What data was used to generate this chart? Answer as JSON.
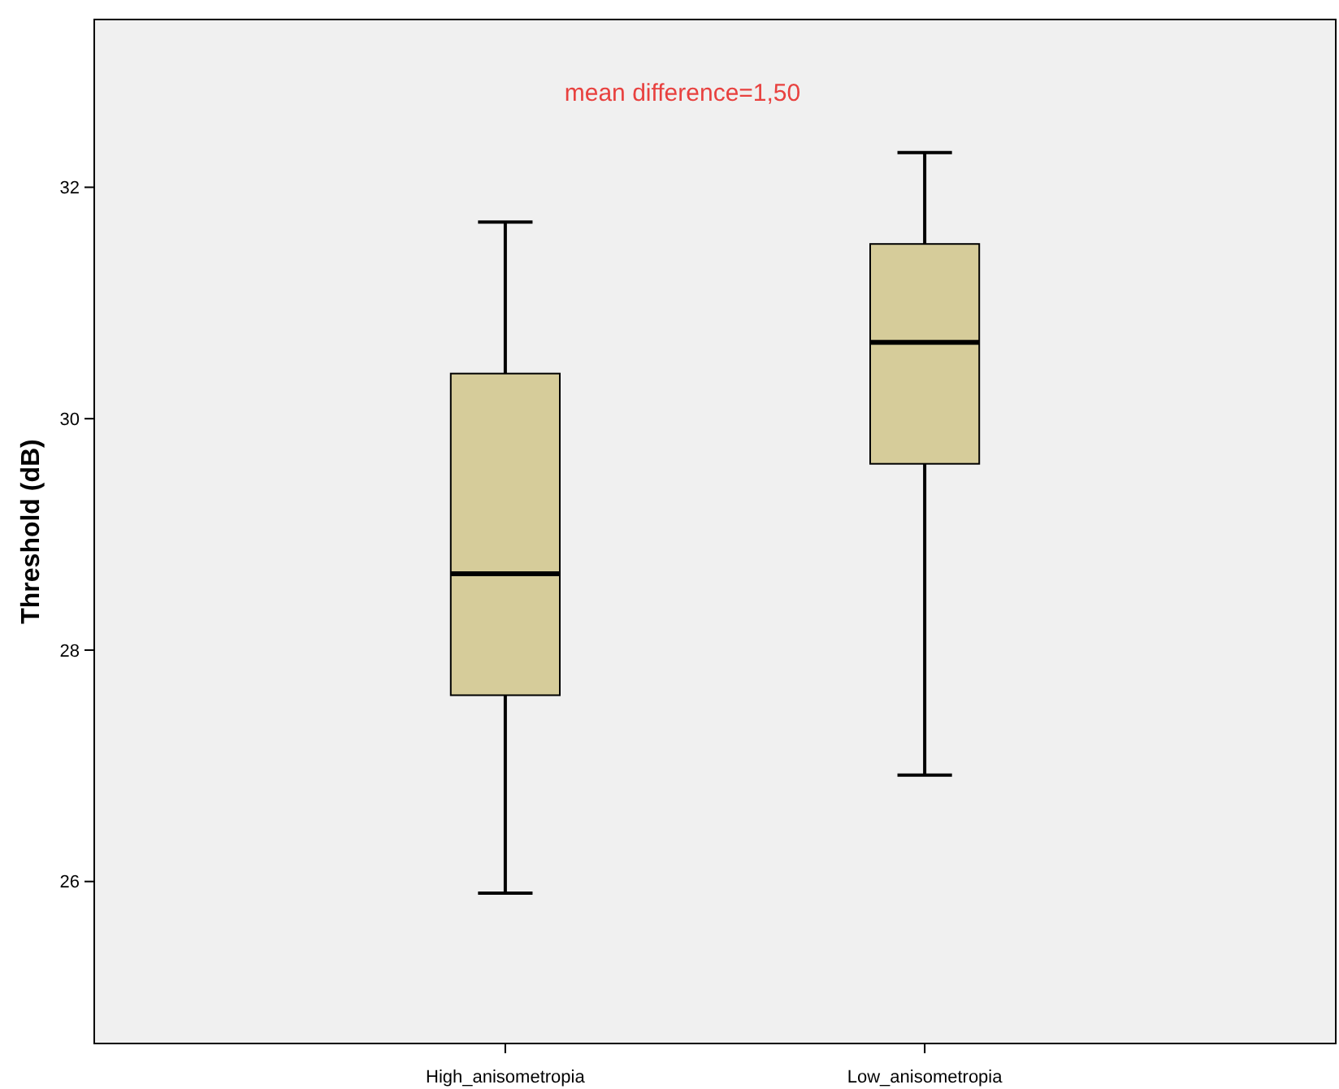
{
  "chart_data": {
    "type": "box",
    "categories": [
      "High_anisometropia",
      "Low_anisometropia"
    ],
    "boxes": [
      {
        "low": 25.9,
        "q1": 27.61,
        "median": 28.66,
        "q3": 30.39,
        "high": 31.7
      },
      {
        "low": 26.92,
        "q1": 29.61,
        "median": 30.66,
        "q3": 31.51,
        "high": 32.3
      }
    ],
    "color": "#d6cc9a",
    "ylabel": "Threshold (dB)",
    "ylim": [
      24.6,
      33.45
    ],
    "yticks": [
      26,
      28,
      30,
      32
    ],
    "grid": false,
    "annotations": [
      "mean difference=1,50"
    ]
  }
}
